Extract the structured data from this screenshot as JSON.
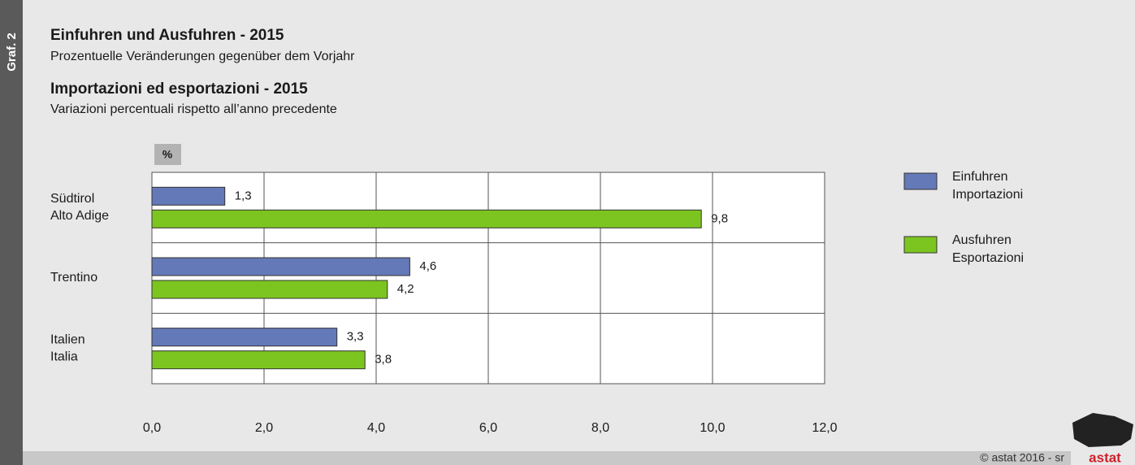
{
  "graf": "Graf. 2",
  "footer": "© astat 2016 - sr",
  "logo": "astat",
  "chart_data": {
    "type": "bar",
    "orientation": "horizontal",
    "title": "Einfuhren und Ausfuhren - 2015",
    "subtitle": "Prozentuelle Veränderungen gegenüber dem Vorjahr",
    "title2": "Importazioni ed esportazioni - 2015",
    "subtitle2": "Variazioni percentuali rispetto all’anno precedente",
    "unit": "%",
    "categories": [
      [
        "Südtirol",
        "Alto Adige"
      ],
      [
        "Trentino"
      ],
      [
        "Italien",
        "Italia"
      ]
    ],
    "series": [
      {
        "name": [
          "Einfuhren",
          "Importazioni"
        ],
        "color": "#6479b8",
        "values": [
          1.3,
          4.6,
          3.3
        ],
        "value_labels": [
          "1,3",
          "4,6",
          "3,3"
        ]
      },
      {
        "name": [
          "Ausfuhren",
          "Esportazioni"
        ],
        "color": "#7cc520",
        "values": [
          9.8,
          4.2,
          3.8
        ],
        "value_labels": [
          "9,8",
          "4,2",
          "3,8"
        ]
      }
    ],
    "xlim": [
      0,
      12
    ],
    "xticks": [
      {
        "value": 0,
        "label": "0,0"
      },
      {
        "value": 2,
        "label": "2,0"
      },
      {
        "value": 4,
        "label": "4,0"
      },
      {
        "value": 6,
        "label": "6,0"
      },
      {
        "value": 8,
        "label": "8,0"
      },
      {
        "value": 10,
        "label": "10,0"
      },
      {
        "value": 12,
        "label": "12,0"
      }
    ],
    "grid": true
  }
}
